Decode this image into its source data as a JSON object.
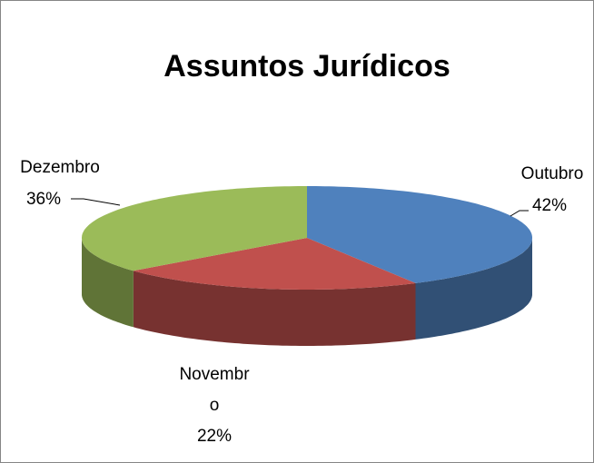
{
  "chart_data": {
    "type": "pie",
    "title": "Assuntos Jurídicos",
    "categories": [
      "Outubro",
      "Novembro",
      "Dezembro"
    ],
    "values": [
      42,
      22,
      36
    ],
    "value_labels": [
      "42%",
      "22%",
      "36%"
    ],
    "colors": [
      "#4f81bd",
      "#c0504d",
      "#9bbb59"
    ]
  }
}
